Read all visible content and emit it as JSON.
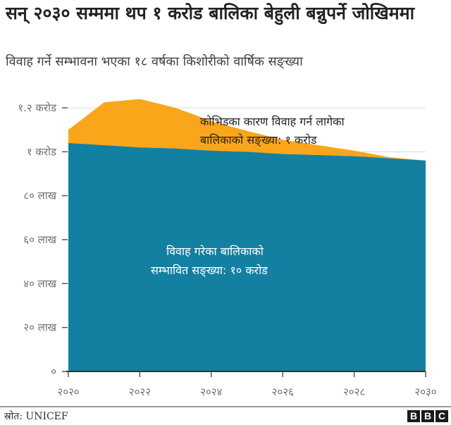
{
  "header": {
    "title": "सन् २०३० सम्ममा थप १ करोड बालिका बेहुली बन्नुपर्ने जोखिममा",
    "subtitle": "विवाह गर्ने सम्भावना भएका १८ वर्षका किशोरीको वार्षिक सङ्ख्या"
  },
  "annotations": {
    "covid_line1": "कोभिडका कारण विवाह गर्न लागेका",
    "covid_line2": "बालिकाको सङ्ख्या: १ करोड",
    "married_line1": "विवाह गरेका बालिकाको",
    "married_line2": "सम्भावित सङ्ख्या: १० करोड"
  },
  "footer": {
    "source_label": "स्रोत:",
    "source_value": "UNICEF",
    "logo_letters": [
      "B",
      "B",
      "C"
    ]
  },
  "colors": {
    "married_area": "#1380A1",
    "covid_area": "#FAA61A",
    "gridline": "#dcdcdc",
    "axis": "#333333"
  },
  "chart_data": {
    "type": "area",
    "stacked": true,
    "title": "सन् २०३० सम्ममा थप १ करोड बालिका बेहुली बन्नुपर्ने जोखिममा",
    "subtitle": "विवाह गर्ने सम्भावना भएका १८ वर्षका किशोरीको वार्षिक सङ्ख्या",
    "xlabel": "",
    "ylabel": "",
    "x": [
      2020,
      2021,
      2022,
      2023,
      2024,
      2025,
      2026,
      2027,
      2028,
      2029,
      2030
    ],
    "x_tick_values": [
      2020,
      2022,
      2024,
      2026,
      2028,
      2030
    ],
    "x_tick_labels": [
      "२०२०",
      "२०२२",
      "२०२४",
      "२०२६",
      "२०२८",
      "२०३०"
    ],
    "y_tick_values": [
      0,
      2000000,
      4000000,
      6000000,
      8000000,
      10000000,
      12000000
    ],
    "y_tick_labels": [
      "०",
      "२० लाख",
      "४० लाख",
      "६० लाख",
      "८० लाख",
      "१ करोड",
      "१.२ करोड"
    ],
    "ylim": [
      0,
      12000000
    ],
    "grid": "horizontal (1 करोड, 1.2 करोड)",
    "series": [
      {
        "name": "विवाह गरेका बालिकाको सम्भावित सङ्ख्या: १० करोड",
        "color": "#1380A1",
        "values": [
          10400000,
          10300000,
          10200000,
          10150000,
          10050000,
          10000000,
          9900000,
          9850000,
          9800000,
          9700000,
          9600000
        ]
      },
      {
        "name": "कोभिडका कारण विवाह गर्न लागेका बालिकाको सङ्ख्या: १ करोड",
        "color": "#FAA61A",
        "values": [
          600000,
          1950000,
          2200000,
          1850000,
          1350000,
          950000,
          650000,
          450000,
          250000,
          50000,
          0
        ]
      }
    ],
    "legend": "inline annotations",
    "source": "UNICEF"
  }
}
